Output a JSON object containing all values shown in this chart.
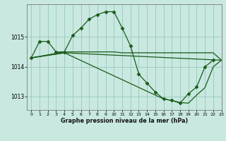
{
  "title": "Graphe pression niveau de la mer (hPa)",
  "background_color": "#c8e8e0",
  "grid_color": "#98c8be",
  "line_color": "#1a5c1a",
  "xlim": [
    -0.5,
    23
  ],
  "ylim": [
    1012.55,
    1016.1
  ],
  "yticks": [
    1013,
    1014,
    1015
  ],
  "xticks": [
    0,
    1,
    2,
    3,
    4,
    5,
    6,
    7,
    8,
    9,
    10,
    11,
    12,
    13,
    14,
    15,
    16,
    17,
    18,
    19,
    20,
    21,
    22,
    23
  ],
  "line1_x": [
    0,
    1,
    2,
    3,
    4,
    5,
    6,
    7,
    8,
    9,
    10,
    11,
    12,
    13,
    14,
    15,
    16,
    17,
    18,
    19,
    20,
    21,
    22
  ],
  "line1_y": [
    1014.3,
    1014.85,
    1014.85,
    1014.5,
    1014.5,
    1015.05,
    1015.3,
    1015.6,
    1015.75,
    1015.85,
    1015.85,
    1015.3,
    1014.7,
    1013.75,
    1013.45,
    1013.15,
    1012.92,
    1012.87,
    1012.78,
    1013.1,
    1013.32,
    1014.0,
    1014.22
  ],
  "line2_x": [
    0,
    4,
    10,
    11,
    22,
    23
  ],
  "line2_y": [
    1014.3,
    1014.5,
    1014.5,
    1014.48,
    1014.48,
    1014.22
  ],
  "line3_x": [
    0,
    4,
    22,
    23
  ],
  "line3_y": [
    1014.3,
    1014.5,
    1014.35,
    1014.22
  ],
  "line4_x": [
    0,
    4,
    19,
    20,
    22,
    23
  ],
  "line4_y": [
    1014.3,
    1014.5,
    1012.78,
    1012.82,
    1014.0,
    1014.22
  ]
}
